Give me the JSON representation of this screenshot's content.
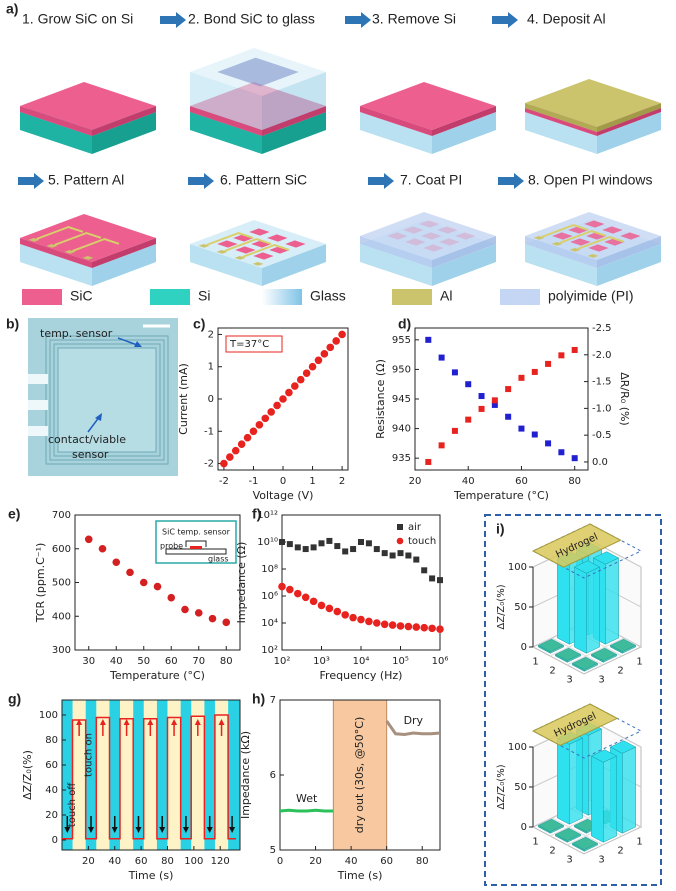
{
  "panels": {
    "a": {
      "label": "a)",
      "steps": [
        "1. Grow SiC on Si",
        "2. Bond SiC to glass",
        "3. Remove Si",
        "4. Deposit Al",
        "5. Pattern Al",
        "6. Pattern SiC",
        "7. Coat PI",
        "8. Open PI windows"
      ],
      "legend": [
        "SiC",
        "Si",
        "Glass",
        "Al",
        "polyimide (PI)"
      ]
    },
    "b": {
      "label": "b)",
      "annotations": [
        "temp. sensor",
        "contact/viable",
        "sensor"
      ]
    }
  },
  "chart_data": [
    {
      "panel": "c)",
      "type": "scatter",
      "xlabel": "Voltage (V)",
      "ylabel": "Current (mA)",
      "annotation": "T=37°C",
      "x": [
        -2,
        -1.8,
        -1.6,
        -1.4,
        -1.2,
        -1,
        -0.8,
        -0.6,
        -0.4,
        -0.2,
        0,
        0.2,
        0.4,
        0.6,
        0.8,
        1,
        1.2,
        1.4,
        1.6,
        1.8,
        2
      ],
      "series": [
        {
          "color": "#e8231f",
          "marker": "circle",
          "values": [
            -2,
            -1.8,
            -1.6,
            -1.4,
            -1.2,
            -1,
            -0.8,
            -0.6,
            -0.4,
            -0.2,
            0,
            0.2,
            0.4,
            0.6,
            0.8,
            1,
            1.2,
            1.4,
            1.6,
            1.8,
            2
          ]
        }
      ],
      "xlim": [
        -2.2,
        2.2
      ],
      "xticks": [
        -2,
        -1,
        0,
        1,
        2
      ],
      "ylim": [
        -2.2,
        2.2
      ],
      "yticks": [
        -2,
        -1,
        0,
        1,
        2
      ]
    },
    {
      "panel": "d)",
      "type": "scatter",
      "xlabel": "Temperature (°C)",
      "ylabel": "Resistance (Ω)",
      "y2label": "ΔR/R₀ (%)",
      "x": [
        25,
        30,
        35,
        40,
        45,
        50,
        55,
        60,
        65,
        70,
        75,
        80
      ],
      "series": [
        {
          "color": "#2020d0",
          "marker": "square",
          "values": [
            955,
            952,
            949.5,
            947.5,
            945.5,
            944,
            942,
            940,
            939,
            937.5,
            936,
            935
          ]
        },
        {
          "color": "#e8231f",
          "marker": "square",
          "axis": "y2",
          "values": [
            0,
            -0.31,
            -0.58,
            -0.79,
            -0.99,
            -1.15,
            -1.36,
            -1.57,
            -1.68,
            -1.83,
            -1.99,
            -2.09
          ]
        }
      ],
      "xlim": [
        20,
        85
      ],
      "xticks": [
        20,
        40,
        60,
        80
      ],
      "ylim": [
        933,
        957
      ],
      "yticks": [
        935,
        940,
        945,
        950,
        955
      ],
      "y2lim": [
        0.15,
        -2.5
      ],
      "y2ticks": [
        {
          "value": 0,
          "label": "0.0"
        },
        -0.5,
        {
          "value": -1,
          "label": "-1.0"
        },
        -1.5,
        {
          "value": -2,
          "label": "-2.0"
        },
        -2.5
      ]
    },
    {
      "panel": "e)",
      "type": "scatter",
      "xlabel": "Temperature (°C)",
      "ylabel": "TCR (ppm.C⁻¹)",
      "inset_labels": [
        "SiC temp. sensor",
        "probe",
        "glass"
      ],
      "x": [
        30,
        35,
        40,
        45,
        50,
        55,
        60,
        65,
        70,
        75,
        80
      ],
      "series": [
        {
          "color": "#d42020",
          "marker": "circle",
          "values": [
            628,
            600,
            560,
            530,
            500,
            488,
            455,
            420,
            410,
            393,
            382
          ]
        }
      ],
      "xlim": [
        25,
        85
      ],
      "xticks": [
        30,
        40,
        50,
        60,
        70,
        80
      ],
      "ylim": [
        300,
        700
      ],
      "yticks": [
        300,
        400,
        500,
        600,
        700
      ]
    },
    {
      "panel": "f)",
      "type": "scatter",
      "xlabel": "Frequency (Hz)",
      "ylabel": "Impedance (Ω)",
      "xlog": true,
      "ylog": true,
      "legend": "upper right",
      "x": [
        100,
        158,
        251,
        398,
        631,
        1000,
        1585,
        2512,
        3981,
        6310,
        10000,
        15849,
        25119,
        39811,
        63096,
        100000,
        158489,
        251189,
        398107,
        630957,
        1000000
      ],
      "series": [
        {
          "name": "air",
          "color": "#333333",
          "marker": "square",
          "values": [
            10000000000,
            7000000000,
            4000000000,
            3000000000,
            4000000000,
            8000000000,
            12000000000,
            5000000000,
            2000000000,
            3000000000,
            10000000000,
            8000000000,
            3000000000,
            1500000000,
            1000000000,
            1500000000,
            1000000000,
            500000000,
            80000000,
            20000000,
            15000000
          ]
        },
        {
          "name": "touch",
          "color": "#e8231f",
          "marker": "circle",
          "values": [
            5000000,
            3000000,
            1500000,
            800000,
            400000,
            200000,
            120000,
            70000,
            40000,
            25000,
            18000,
            13000,
            10000,
            8000,
            7000,
            6000,
            5500,
            5000,
            4500,
            4000,
            3500
          ]
        }
      ],
      "xlim": [
        100,
        1000000
      ],
      "xticks": [
        {
          "value": 100,
          "label": "10²"
        },
        {
          "value": 1000,
          "label": "10³"
        },
        {
          "value": 10000,
          "label": "10⁴"
        },
        {
          "value": 100000,
          "label": "10⁵"
        },
        {
          "value": 1000000,
          "label": "10⁶"
        }
      ],
      "ylim": [
        100,
        1000000000000
      ],
      "yticks": [
        {
          "value": 100,
          "label": "10²"
        },
        {
          "value": 10000,
          "label": "10⁴"
        },
        {
          "value": 1000000,
          "label": "10⁶"
        },
        {
          "value": 100000000,
          "label": "10⁸"
        },
        {
          "value": 10000000000,
          "label": "10¹⁰"
        },
        {
          "value": 1000000000000,
          "label": "10¹²"
        }
      ]
    },
    {
      "panel": "g)",
      "type": "line",
      "xlabel": "Time (s)",
      "ylabel": "ΔZ/Z₀(%)",
      "annotations": [
        "touch off",
        "touch on"
      ],
      "background": "#2ad1e5",
      "band_color": "#fdf3c6",
      "x": [
        0,
        8,
        8,
        18,
        18,
        26,
        26,
        36,
        36,
        44,
        44,
        54,
        54,
        62,
        62,
        72,
        72,
        80,
        80,
        90,
        90,
        98,
        98,
        108,
        108,
        116,
        116,
        126,
        126,
        132
      ],
      "series": [
        {
          "color": "#e8231f",
          "values": [
            1,
            1,
            96,
            96,
            1,
            1,
            98,
            98,
            1,
            1,
            97,
            97,
            1,
            1,
            97,
            97,
            1,
            1,
            98,
            98,
            1,
            1,
            99,
            99,
            1,
            1,
            100,
            100,
            1,
            1
          ]
        }
      ],
      "xlim": [
        0,
        135
      ],
      "xticks": [
        20,
        40,
        60,
        80,
        100,
        120
      ],
      "ylim": [
        -8,
        112
      ],
      "yticks": [
        0,
        20,
        40,
        60,
        80,
        100
      ]
    },
    {
      "panel": "h)",
      "type": "line",
      "xlabel": "Time (s)",
      "ylabel": "Impedance (kΩ)",
      "shaded_range": [
        30,
        60
      ],
      "shaded_label": "dry out (30s, @50°C)",
      "shaded_color": "#f8c9a0",
      "x": [
        0,
        5,
        10,
        15,
        20,
        25,
        30,
        35,
        40,
        45,
        50,
        55,
        60,
        65,
        70,
        75,
        80,
        85,
        90
      ],
      "series": [
        {
          "name": "Wet",
          "color": "#2cc05a",
          "values": [
            5.52,
            5.53,
            5.52,
            5.52,
            5.53,
            5.52,
            5.52,
            null,
            null,
            null,
            null,
            null,
            null,
            null,
            null,
            null,
            null,
            null,
            null
          ]
        },
        {
          "name": "Dry",
          "color": "#a8907e",
          "values": [
            null,
            null,
            null,
            null,
            null,
            null,
            null,
            null,
            null,
            null,
            null,
            null,
            6.72,
            6.55,
            6.54,
            6.56,
            6.55,
            6.55,
            6.56
          ]
        }
      ],
      "xlim": [
        0,
        90
      ],
      "xticks": [
        0,
        20,
        40,
        60,
        80
      ],
      "ylim": [
        5,
        7
      ],
      "yticks": [
        5,
        6,
        7
      ]
    },
    {
      "panel": "i)",
      "type": "bar3d",
      "zlabel": "ΔZ/Z₀(%)",
      "annotation": "Hydrogel",
      "row_labels": [
        "1",
        "2",
        "3"
      ],
      "col_labels": [
        "1",
        "2",
        "3"
      ],
      "values": [
        [
          100,
          100,
          2
        ],
        [
          100,
          100,
          2
        ],
        [
          2,
          2,
          2
        ]
      ],
      "zlim": [
        0,
        100
      ],
      "zticks": [
        0,
        50,
        100
      ],
      "color": "#2fe0ee",
      "low_color": "#3dbb9a"
    },
    {
      "type": "bar3d",
      "zlabel": "ΔZ/Z₀(%)",
      "annotation": "Hydrogel",
      "row_labels": [
        "1",
        "2",
        "3"
      ],
      "col_labels": [
        "1",
        "2",
        "3"
      ],
      "values": [
        [
          100,
          2,
          100
        ],
        [
          100,
          2,
          100
        ],
        [
          2,
          2,
          2
        ]
      ],
      "zlim": [
        0,
        100
      ],
      "zticks": [
        0,
        50,
        100
      ],
      "color": "#2fe0ee",
      "low_color": "#3dbb9a"
    }
  ]
}
